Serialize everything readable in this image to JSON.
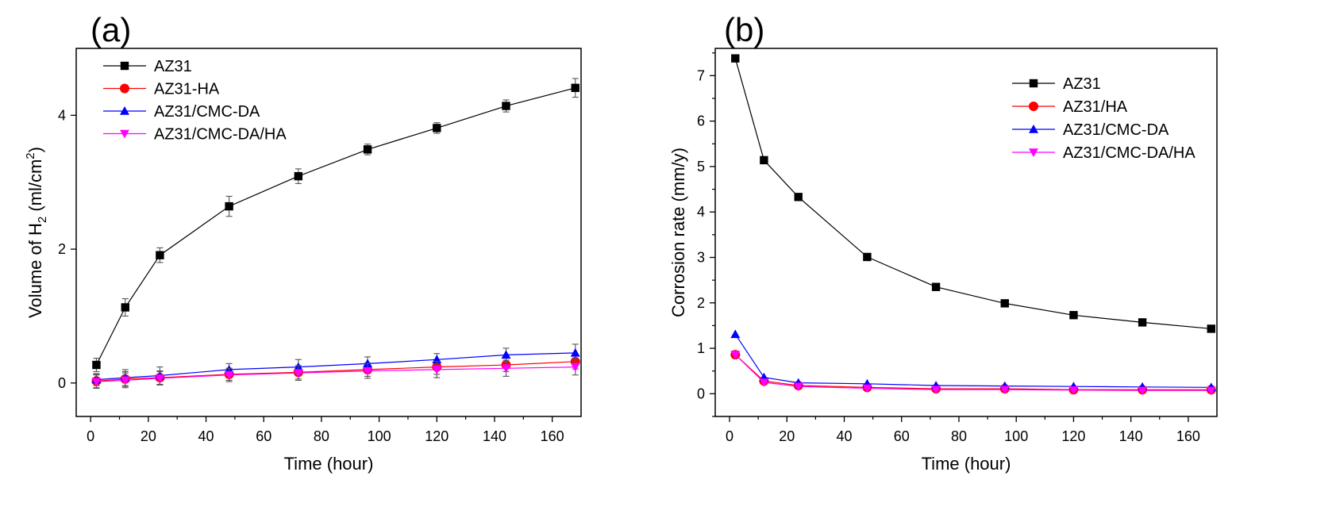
{
  "chart_data": [
    {
      "panel_label": "(a)",
      "type": "line",
      "xlabel": "Time (hour)",
      "ylabel": "Volume of H",
      "ylabel_sub": "2",
      "ylabel_unit_pre": " (ml/cm",
      "ylabel_unit_sup": "2",
      "ylabel_unit_post": ")",
      "xlim": [
        -5,
        170
      ],
      "ylim": [
        -0.5,
        5.0
      ],
      "xticks": [
        0,
        20,
        40,
        60,
        80,
        100,
        120,
        140,
        160
      ],
      "yticks": [
        0,
        2,
        4
      ],
      "legend_position": "top-left",
      "x": [
        2,
        12,
        24,
        48,
        72,
        96,
        120,
        144,
        168
      ],
      "series": [
        {
          "name": "AZ31",
          "color": "#000000",
          "marker": "square",
          "values": [
            0.27,
            1.13,
            1.91,
            2.64,
            3.09,
            3.49,
            3.81,
            4.14,
            4.41
          ],
          "errors": [
            0.1,
            0.13,
            0.11,
            0.15,
            0.11,
            0.08,
            0.08,
            0.09,
            0.14
          ]
        },
        {
          "name": "AZ31-HA",
          "color": "#ff0000",
          "marker": "circle",
          "values": [
            0.03,
            0.06,
            0.08,
            0.13,
            0.16,
            0.2,
            0.24,
            0.27,
            0.32
          ],
          "errors": [
            0.1,
            0.11,
            0.1,
            0.09,
            0.1,
            0.1,
            0.11,
            0.1,
            0.11
          ]
        },
        {
          "name": "AZ31/CMC-DA",
          "color": "#0000ff",
          "marker": "triangle-up",
          "values": [
            0.05,
            0.08,
            0.11,
            0.2,
            0.24,
            0.29,
            0.35,
            0.42,
            0.45
          ],
          "errors": [
            0.09,
            0.12,
            0.13,
            0.09,
            0.11,
            0.1,
            0.09,
            0.1,
            0.13
          ]
        },
        {
          "name": "AZ31/CMC-DA/HA",
          "color": "#ff00ff",
          "marker": "triangle-down",
          "values": [
            0.02,
            0.04,
            0.07,
            0.12,
            0.15,
            0.18,
            0.2,
            0.22,
            0.24
          ],
          "errors": [
            0.1,
            0.11,
            0.1,
            0.1,
            0.11,
            0.11,
            0.12,
            0.12,
            0.12
          ]
        }
      ]
    },
    {
      "panel_label": "(b)",
      "type": "line",
      "xlabel": "Time (hour)",
      "ylabel": "Corrosion rate (mm/y)",
      "xlim": [
        -5,
        170
      ],
      "ylim": [
        -0.5,
        7.6
      ],
      "xticks": [
        0,
        20,
        40,
        60,
        80,
        100,
        120,
        140,
        160
      ],
      "yticks": [
        0,
        1,
        2,
        3,
        4,
        5,
        6,
        7
      ],
      "legend_position": "top-right",
      "x": [
        2,
        12,
        24,
        48,
        72,
        96,
        120,
        144,
        168
      ],
      "series": [
        {
          "name": "AZ31",
          "color": "#000000",
          "marker": "square",
          "values": [
            7.38,
            5.14,
            4.33,
            3.01,
            2.35,
            1.99,
            1.73,
            1.57,
            1.43
          ]
        },
        {
          "name": "AZ31/HA",
          "color": "#ff0000",
          "marker": "circle",
          "values": [
            0.86,
            0.28,
            0.18,
            0.14,
            0.11,
            0.11,
            0.09,
            0.09,
            0.09
          ]
        },
        {
          "name": "AZ31/CMC-DA",
          "color": "#0000ff",
          "marker": "triangle-up",
          "values": [
            1.31,
            0.36,
            0.24,
            0.22,
            0.18,
            0.17,
            0.16,
            0.15,
            0.14
          ]
        },
        {
          "name": "AZ31/CMC-DA/HA",
          "color": "#ff00ff",
          "marker": "triangle-down",
          "values": [
            0.86,
            0.25,
            0.16,
            0.12,
            0.09,
            0.09,
            0.08,
            0.07,
            0.07
          ]
        }
      ]
    }
  ]
}
